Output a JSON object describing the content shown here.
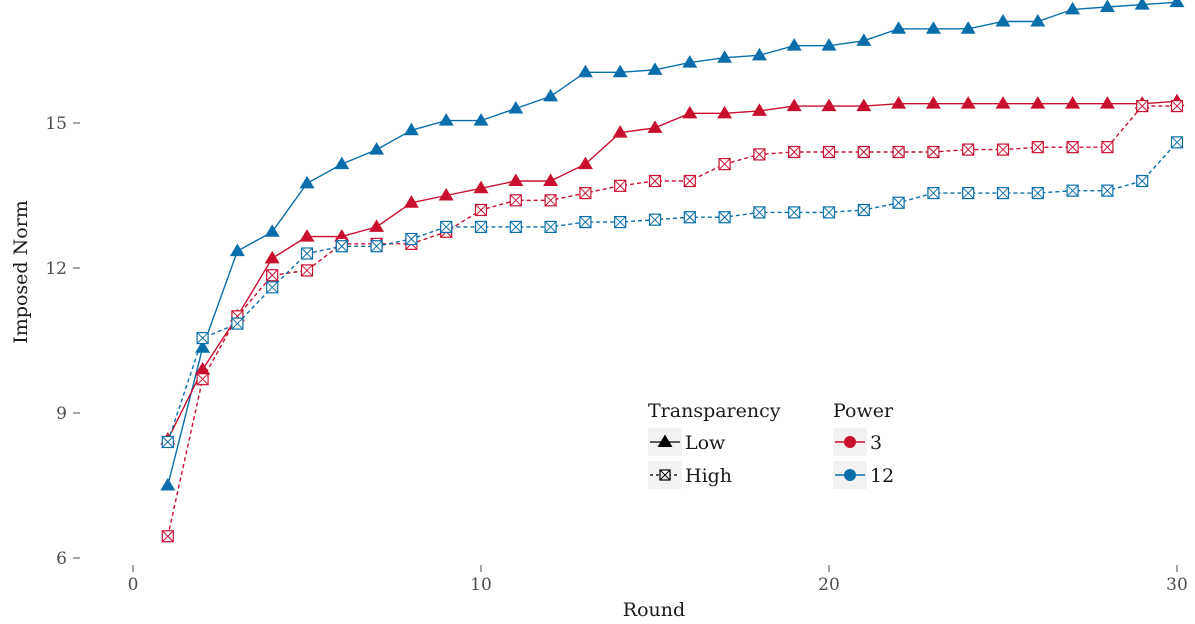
{
  "chart_data": {
    "type": "line",
    "xlabel": "Round",
    "ylabel": "Imposed Norm",
    "xlim": [
      0,
      30
    ],
    "ylim": [
      6,
      17.5
    ],
    "xticks": [
      0,
      10,
      20,
      30
    ],
    "yticks": [
      6,
      9,
      12,
      15
    ],
    "grid": false,
    "legend_placement": "bottom-center",
    "legend": {
      "transparency": {
        "title": "Transparency",
        "items": [
          "Low",
          "High"
        ]
      },
      "power": {
        "title": "Power",
        "items": [
          "3",
          "12"
        ]
      }
    },
    "colors": {
      "3": "#c8102e",
      "12": "#0a6eab"
    },
    "x": [
      1,
      2,
      3,
      4,
      5,
      6,
      7,
      8,
      9,
      10,
      11,
      12,
      13,
      14,
      15,
      16,
      17,
      18,
      19,
      20,
      21,
      22,
      23,
      24,
      25,
      26,
      27,
      28,
      29,
      30
    ],
    "series": [
      {
        "name": "Low / 12",
        "power": "12",
        "transparency": "Low",
        "values": [
          7.5,
          10.35,
          12.35,
          12.75,
          13.75,
          14.15,
          14.45,
          14.85,
          15.05,
          15.05,
          15.3,
          15.55,
          16.05,
          16.05,
          16.1,
          16.25,
          16.35,
          16.4,
          16.6,
          16.6,
          16.7,
          16.95,
          16.95,
          16.95,
          17.1,
          17.1,
          17.35,
          17.4,
          17.45,
          17.5
        ]
      },
      {
        "name": "Low / 3",
        "power": "3",
        "transparency": "Low",
        "values": [
          8.45,
          9.9,
          11.0,
          12.2,
          12.65,
          12.65,
          12.85,
          13.35,
          13.5,
          13.65,
          13.8,
          13.8,
          14.15,
          14.8,
          14.9,
          15.2,
          15.2,
          15.25,
          15.35,
          15.35,
          15.35,
          15.4,
          15.4,
          15.4,
          15.4,
          15.4,
          15.4,
          15.4,
          15.4,
          15.45
        ]
      },
      {
        "name": "High / 3",
        "power": "3",
        "transparency": "High",
        "values": [
          6.45,
          9.7,
          11.0,
          11.85,
          11.95,
          12.5,
          12.5,
          12.5,
          12.75,
          13.2,
          13.4,
          13.4,
          13.55,
          13.7,
          13.8,
          13.8,
          14.15,
          14.35,
          14.4,
          14.4,
          14.4,
          14.4,
          14.4,
          14.45,
          14.45,
          14.5,
          14.5,
          14.5,
          15.35,
          15.35
        ]
      },
      {
        "name": "High / 12",
        "power": "12",
        "transparency": "High",
        "values": [
          8.4,
          10.55,
          10.85,
          11.6,
          12.3,
          12.45,
          12.45,
          12.6,
          12.85,
          12.85,
          12.85,
          12.85,
          12.95,
          12.95,
          13.0,
          13.05,
          13.05,
          13.15,
          13.15,
          13.15,
          13.2,
          13.35,
          13.55,
          13.55,
          13.55,
          13.55,
          13.6,
          13.6,
          13.8,
          14.6
        ]
      }
    ]
  }
}
